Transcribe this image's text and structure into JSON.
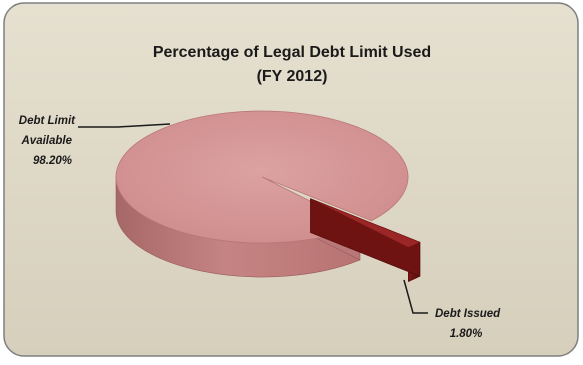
{
  "chart_data": {
    "type": "pie",
    "title": [
      "Percentage of Legal Debt Limit Used",
      "(FY 2012)"
    ],
    "slices": [
      {
        "name": "Debt Limit Available",
        "label_lines": [
          "Debt Limit",
          "Available"
        ],
        "value": 98.2,
        "value_label": "98.20%",
        "color": "#d59594"
      },
      {
        "name": "Debt Issued",
        "label_lines": [
          "Debt Issued"
        ],
        "value": 1.8,
        "value_label": "1.80%",
        "color": "#8e1f1f"
      }
    ],
    "exploded_slice": "Debt Issued",
    "three_d": true,
    "legend": "none"
  },
  "colors": {
    "panel_background": "#ddd6c4",
    "panel_border": "#7f7f7f",
    "text": "#1a1a1a"
  }
}
